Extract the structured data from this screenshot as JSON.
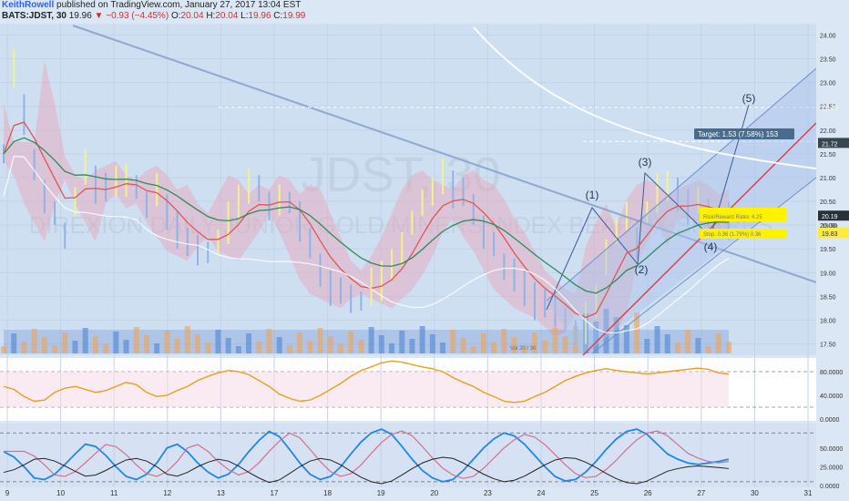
{
  "header": {
    "author": "KeithRowell",
    "published": "published on TradingView.com, January 27, 2017 13:04 EST",
    "symbol": "BATS:JDST, 30",
    "last": "19.96",
    "change": "▼ −0.93 (−4.45%)",
    "o_label": "O:",
    "o_val": "20.04",
    "h_label": "H:",
    "h_val": "20.04",
    "l_label": "L:",
    "l_val": "19.96",
    "c_label": "C:",
    "c_val": "19.99"
  },
  "watermark": {
    "ticker": "JDST, 30",
    "description": "DIREXION DAILY JUNIOR GOLD MINERS INDEX BEAR 3X SHARES"
  },
  "chart_data": {
    "type": "line",
    "title": "JDST, 30",
    "x_ticks": [
      "9",
      "10",
      "11",
      "12",
      "13",
      "17",
      "18",
      "19",
      "20",
      "23",
      "24",
      "25",
      "26",
      "27",
      "30",
      "31"
    ],
    "y_ticks": [
      "24.00",
      "23.50",
      "23.00",
      "22.50",
      "22.00",
      "21.50",
      "21.00",
      "20.50",
      "20.00",
      "19.50",
      "19.00",
      "18.50",
      "18.00",
      "17.50"
    ],
    "ylim": [
      17.3,
      24.2
    ],
    "price_labels": [
      {
        "text": "22.48",
        "value": 22.48,
        "color": "#ffffff",
        "bg": "none"
      },
      {
        "text": "21.76",
        "value": 21.76,
        "color": "#ffffff",
        "bg": "none"
      },
      {
        "text": "21.72",
        "value": 21.72,
        "color": "#ffffff",
        "bg": "#37474f"
      },
      {
        "text": "20.19",
        "value": 20.19,
        "color": "#ffffff",
        "bg": "#263238"
      },
      {
        "text": "19.99",
        "value": 19.99,
        "color": "#333333",
        "bg": "none"
      },
      {
        "text": "19.83",
        "value": 19.83,
        "color": "#333333",
        "bg": "#ffeb3b"
      }
    ],
    "close_series": [
      21.5,
      23.2,
      22.3,
      21.2,
      20.6,
      20.2,
      19.8,
      20.6,
      21.1,
      20.8,
      20.7,
      20.9,
      21.0,
      20.8,
      20.5,
      20.6,
      20.2,
      19.9,
      19.6,
      19.5,
      19.4,
      19.7,
      20.0,
      20.4,
      20.8,
      20.7,
      20.4,
      20.6,
      20.5,
      20.0,
      19.5,
      19.0,
      18.7,
      18.6,
      18.5,
      18.4,
      18.6,
      18.8,
      19.1,
      19.5,
      20.0,
      20.5,
      20.8,
      20.9,
      20.7,
      20.6,
      20.3,
      19.9,
      19.6,
      19.2,
      18.8,
      18.6,
      18.4,
      18.3,
      18.2,
      18.0,
      17.8,
      17.9,
      18.3,
      19.3,
      19.8,
      20.2,
      19.7,
      20.3,
      20.6,
      20.7,
      20.6,
      20.4,
      20.5,
      20.3,
      20.2,
      19.99
    ],
    "wave_labels": [
      "(1)",
      "(2)",
      "(3)",
      "(4)",
      "(5)"
    ],
    "target_label": "Target: 1.53 (7.58%) 153",
    "target_value": 21.76,
    "top_line_value": 22.48,
    "stop_label_1": "Stop: 0.36 (1.79%) 0.36",
    "stop_label_2": "Risk/Reward Ratio: 4.25",
    "volume_label": "Vol 20 / 30",
    "osc1": {
      "y_ticks": [
        "80.0000",
        "40.0000",
        "0.0000"
      ],
      "ylim": [
        0,
        100
      ],
      "series": [
        55,
        50,
        38,
        30,
        32,
        45,
        52,
        55,
        50,
        45,
        48,
        55,
        62,
        58,
        45,
        38,
        40,
        48,
        55,
        65,
        72,
        78,
        82,
        80,
        75,
        65,
        55,
        42,
        35,
        30,
        32,
        40,
        50,
        60,
        72,
        82,
        88,
        95,
        98,
        96,
        92,
        88,
        85,
        80,
        70,
        62,
        55,
        45,
        38,
        30,
        28,
        30,
        38,
        45,
        55,
        65,
        72,
        78,
        82,
        85,
        82,
        80,
        78,
        76,
        78,
        80,
        82,
        84,
        86,
        84,
        78,
        76
      ]
    },
    "osc2": {
      "y_ticks": [
        "50.0000",
        "25.0000",
        "0.0000"
      ],
      "ylim": [
        0,
        80
      ],
      "series": [
        45,
        38,
        25,
        10,
        8,
        15,
        28,
        42,
        55,
        52,
        40,
        25,
        12,
        8,
        15,
        30,
        50,
        55,
        45,
        30,
        18,
        10,
        15,
        28,
        45,
        60,
        72,
        65,
        48,
        30,
        15,
        8,
        12,
        25,
        42,
        58,
        70,
        75,
        68,
        52,
        35,
        20,
        10,
        5,
        8,
        20,
        35,
        50,
        62,
        70,
        66,
        55,
        40,
        25,
        12,
        6,
        8,
        18,
        32,
        48,
        62,
        72,
        75,
        68,
        55,
        42,
        35,
        30,
        28,
        30,
        32,
        35
      ]
    }
  }
}
